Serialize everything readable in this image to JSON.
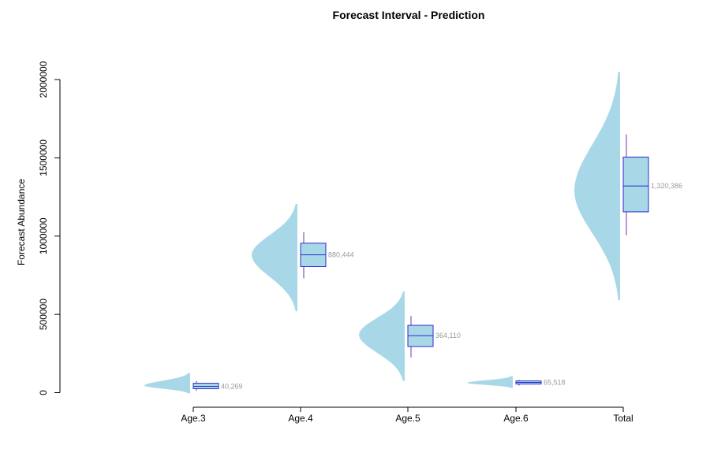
{
  "chart_data": {
    "type": "violin",
    "title": "Forecast Interval - Prediction",
    "xlabel": "",
    "ylabel": "Forecast Abundance",
    "ylim": [
      -40000,
      2070000
    ],
    "yticks": [
      "0",
      "500000",
      "1000000",
      "1500000",
      "2000000"
    ],
    "ytick_values": [
      0,
      500000,
      1000000,
      1500000,
      2000000
    ],
    "grid": false,
    "legend": "none",
    "colors": {
      "violin": "#a8d8e8",
      "box_fill": "#a8d8e8",
      "box_border": "#2c2ccc",
      "whisker": "#7b2fa8",
      "label": "#9a9a9a"
    },
    "categories": [
      "Age.3",
      "Age.4",
      "Age.5",
      "Age.6",
      "Total"
    ],
    "series": [
      {
        "category": "Age.3",
        "median": 40269,
        "median_label": "40,269",
        "q1": 25000,
        "q3": 60000,
        "whisker_low": 12000,
        "whisker_high": 75000,
        "min": -5000,
        "max": 125000,
        "mode": 45000
      },
      {
        "category": "Age.4",
        "median": 880444,
        "median_label": "880,444",
        "q1": 805000,
        "q3": 955000,
        "whisker_low": 730000,
        "whisker_high": 1025000,
        "min": 520000,
        "max": 1205000,
        "mode": 880000
      },
      {
        "category": "Age.5",
        "median": 364110,
        "median_label": "364,110",
        "q1": 295000,
        "q3": 430000,
        "whisker_low": 225000,
        "whisker_high": 490000,
        "min": 75000,
        "max": 645000,
        "mode": 370000
      },
      {
        "category": "Age.6",
        "median": 65518,
        "median_label": "65,518",
        "q1": 55000,
        "q3": 75000,
        "whisker_low": 45000,
        "whisker_high": 82000,
        "min": 30000,
        "max": 105000,
        "mode": 62000
      },
      {
        "category": "Total",
        "median": 1320386,
        "median_label": "1,320,386",
        "q1": 1155000,
        "q3": 1505000,
        "whisker_low": 1005000,
        "whisker_high": 1650000,
        "min": 590000,
        "max": 2050000,
        "mode": 1290000
      }
    ]
  }
}
